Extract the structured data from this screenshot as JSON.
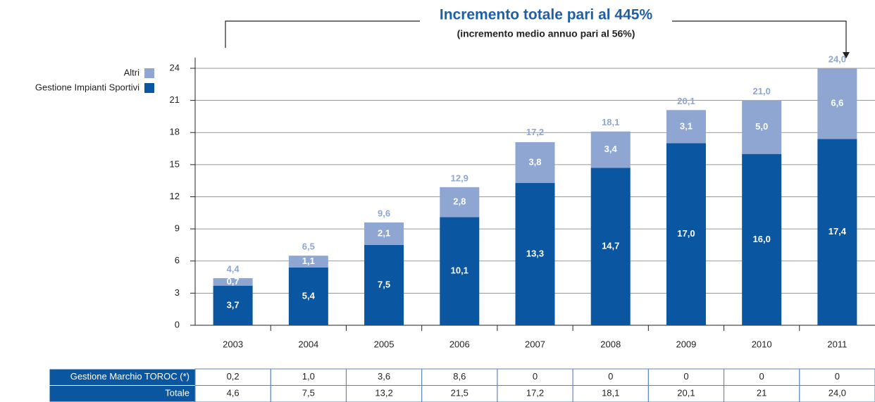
{
  "chart_data": {
    "type": "stacked_bar",
    "title": "Incremento totale pari al 445%",
    "subtitle": "(incremento medio annuo pari al 56%)",
    "categories": [
      "2003",
      "2004",
      "2005",
      "2006",
      "2007",
      "2008",
      "2009",
      "2010",
      "2011"
    ],
    "series": [
      {
        "name": "Gestione Impianti Sportivi",
        "color": "#0a56a0",
        "values": [
          3.7,
          5.4,
          7.5,
          10.1,
          13.3,
          14.7,
          17.0,
          16.0,
          17.4
        ],
        "value_labels": [
          "3,7",
          "5,4",
          "7,5",
          "10,1",
          "13,3",
          "14,7",
          "17,0",
          "16,0",
          "17,4"
        ]
      },
      {
        "name": "Altri",
        "color": "#8fa6d3",
        "values": [
          0.7,
          1.1,
          2.1,
          2.8,
          3.8,
          3.4,
          3.1,
          5.0,
          6.6
        ],
        "value_labels": [
          "0,7",
          "1,1",
          "2,1",
          "2,8",
          "3,8",
          "3,4",
          "3,1",
          "5,0",
          "6,6"
        ]
      }
    ],
    "totals": {
      "color": "#8fa6d3",
      "values": [
        4.4,
        6.5,
        9.6,
        12.9,
        17.2,
        18.1,
        20.1,
        21.0,
        24.0
      ],
      "value_labels": [
        "4,4",
        "6,5",
        "9,6",
        "12,9",
        "17,2",
        "18,1",
        "20,1",
        "21,0",
        "24,0"
      ]
    },
    "ylim": [
      0,
      25
    ],
    "yticks": [
      0,
      3,
      6,
      9,
      12,
      15,
      18,
      21,
      24
    ],
    "grid": true,
    "legend": "top-left"
  },
  "table": {
    "rows": [
      {
        "label": "Gestione Marchio TOROC (*)",
        "cells": [
          "0,2",
          "1,0",
          "3,6",
          "8,6",
          "0",
          "0",
          "0",
          "0",
          "0"
        ]
      },
      {
        "label": "Totale",
        "cells": [
          "4,6",
          "7,5",
          "13,2",
          "21,5",
          "17,2",
          "18,1",
          "20,1",
          "21",
          "24,0"
        ]
      }
    ]
  }
}
